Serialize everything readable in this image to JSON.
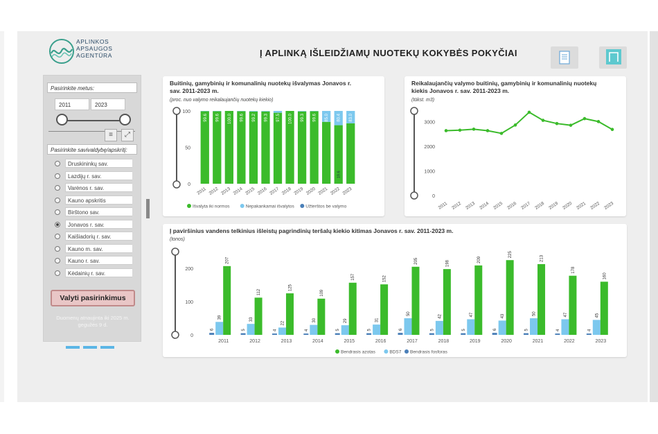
{
  "header": {
    "logo_lines": [
      "APLINKOS",
      "APSAUGOS",
      "AGENTŪRA"
    ],
    "title": "Į APLINKĄ IŠLEIDŽIAMŲ NUOTEKŲ KOKYBĖS POKYČIAI",
    "doc_icon": "document-icon",
    "box_icon": "frame-icon"
  },
  "sidebar": {
    "years_label": "Pasirinkite metus:",
    "year_from": "2011",
    "year_to": "2023",
    "municipality_label": "Pasirinkite savivaldybę/apskritį:",
    "items": [
      {
        "label": "Druskininkų sav.",
        "selected": false
      },
      {
        "label": "Lazdijų r. sav.",
        "selected": false
      },
      {
        "label": "Varėnos r. sav.",
        "selected": false
      },
      {
        "label": "Kauno apskritis",
        "selected": false
      },
      {
        "label": "Birštono sav.",
        "selected": false
      },
      {
        "label": "Jonavos r. sav.",
        "selected": true
      },
      {
        "label": "Kaišiadorių r. sav.",
        "selected": false
      },
      {
        "label": "Kauno m. sav.",
        "selected": false
      },
      {
        "label": "Kauno r. sav.",
        "selected": false
      },
      {
        "label": "Kėdainių r. sav.",
        "selected": false
      }
    ],
    "clear_button": "Valyti pasirinkimus",
    "update_note": "Duomenų atnaujinta iki 2025 m. gegužės 9 d.",
    "accent": "#5cb6e6"
  },
  "chart1": {
    "title": "Buitinių, gamybinių ir komunalinių nuotekų išvalymas Jonavos r. sav. 2011-2023 m.",
    "subtitle": "(proc. nuo valymo reikalaujančių nuotekų kiekio)",
    "chart_data": {
      "type": "bar",
      "categories": [
        "2011",
        "2012",
        "2013",
        "2014",
        "2015",
        "2016",
        "2017",
        "2018",
        "2019",
        "2020",
        "2021",
        "2022",
        "2023"
      ],
      "series": [
        {
          "name": "Išvalyta iki normos",
          "color": "#3bbb2b",
          "values": [
            99.6,
            99.6,
            100.0,
            99.6,
            99.2,
            99.3,
            97.5,
            100.0,
            99.3,
            99.6,
            85.0,
            80.4,
            83.0
          ]
        },
        {
          "name": "Nepakankamai išvalytos",
          "color": "#7cc8ee",
          "values": [
            0.4,
            0.4,
            0.0,
            0.4,
            0.8,
            0.7,
            2.5,
            0.0,
            0.7,
            0.4,
            15.0,
            19.6,
            17.0
          ]
        },
        {
          "name": "Užterštos be valymo",
          "color": "#4a7fb8",
          "values": [
            0,
            0,
            0,
            0,
            0,
            0,
            0,
            0,
            0,
            0,
            0,
            0,
            0
          ]
        }
      ],
      "labels": [
        "99.6",
        "99.6",
        "100.0",
        "99.6",
        "99.2",
        "99.3",
        "97.5",
        "100.0",
        "99.3",
        "99.6",
        "85.0",
        "80.4",
        "83.0"
      ],
      "minor_labels": {
        "11": "19.6"
      },
      "yticks": [
        0,
        50,
        100
      ],
      "ylim": [
        0,
        100
      ],
      "legend": "bottom"
    }
  },
  "chart2": {
    "title": "Reikalaujančių valymo buitinių, gamybinių ir komunalinių nuotekų kiekis Jonavos r. sav. 2011-2023 m.",
    "subtitle": "(tūkst. m3)",
    "chart_data": {
      "type": "line",
      "categories": [
        "2011",
        "2012",
        "2013",
        "2014",
        "2015",
        "2016",
        "2017",
        "2018",
        "2019",
        "2020",
        "2021",
        "2022",
        "2023"
      ],
      "values": [
        2640,
        2660,
        2700,
        2640,
        2530,
        2870,
        3390,
        3060,
        2930,
        2860,
        3130,
        3010,
        2690
      ],
      "yticks": [
        0,
        1000,
        2000,
        3000
      ],
      "ylim": [
        0,
        3500
      ],
      "color": "#3bbb2b"
    }
  },
  "chart3": {
    "title": "Į paviršinius vandens telkinius išleistų pagrindinių teršalų kiekio kitimas Jonavos r. sav. 2011-2023 m.",
    "subtitle": "(tonos)",
    "chart_data": {
      "type": "bar",
      "categories": [
        "2011",
        "2012",
        "2013",
        "2014",
        "2015",
        "2016",
        "2017",
        "2018",
        "2019",
        "2020",
        "2021",
        "2022",
        "2023"
      ],
      "series": [
        {
          "name": "Bendrasis azotas",
          "color": "#3bbb2b",
          "values": [
            207,
            112,
            125,
            109,
            157,
            152,
            205,
            198,
            209,
            225,
            213,
            178,
            160
          ]
        },
        {
          "name": "BDS7",
          "color": "#7cc8ee",
          "values": [
            39,
            33,
            22,
            30,
            29,
            31,
            50,
            42,
            47,
            43,
            50,
            47,
            45
          ]
        },
        {
          "name": "Bendrasis fosforas",
          "color": "#4a7fb8",
          "values": [
            6,
            5,
            4,
            4,
            5,
            5,
            6,
            5,
            5,
            6,
            5,
            4,
            4
          ]
        }
      ],
      "yticks": [
        0,
        100,
        200
      ],
      "ylim": [
        0,
        240
      ],
      "legend": "bottom"
    }
  }
}
